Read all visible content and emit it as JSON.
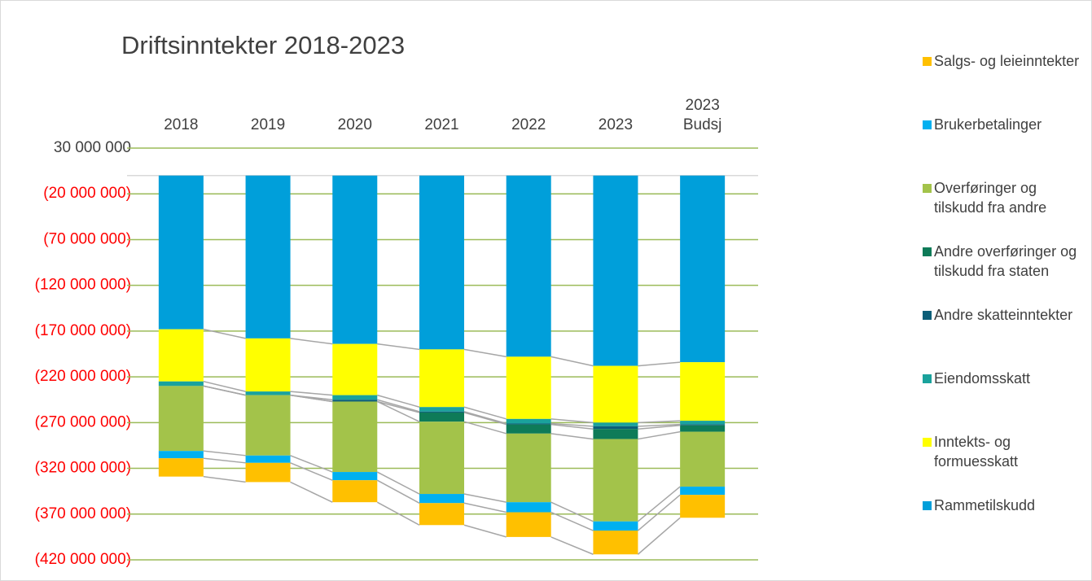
{
  "chart_data": {
    "type": "stacked_bar",
    "title": "Driftsinntekter 2018-2023",
    "categories": [
      "2018",
      "2019",
      "2020",
      "2021",
      "2022",
      "2023",
      "2023 Budsj"
    ],
    "series": [
      {
        "name": "Rammetilskudd",
        "color": "#009fda",
        "values": [
          -168000000,
          -178000000,
          -184000000,
          -190000000,
          -198000000,
          -208000000,
          -204000000
        ]
      },
      {
        "name": "Inntekts- og formuesskatt",
        "color": "#ffff00",
        "values": [
          -57000000,
          -58000000,
          -56000000,
          -63000000,
          -68000000,
          -62000000,
          -64000000
        ]
      },
      {
        "name": "Eiendomsskatt",
        "color": "#1aa29c",
        "values": [
          -5000000,
          -4000000,
          -5000000,
          -5000000,
          -5000000,
          -4000000,
          -4000000
        ]
      },
      {
        "name": "Andre skatteinntekter",
        "color": "#0b5e78",
        "values": [
          0,
          0,
          -2000000,
          -1000000,
          -1000000,
          -3000000,
          -1000000
        ]
      },
      {
        "name": "Andre overføringer og tilskudd fra staten",
        "color": "#0e7b58",
        "values": [
          0,
          0,
          0,
          -10000000,
          -10000000,
          -11000000,
          -7000000
        ]
      },
      {
        "name": "Overføringer og tilskudd fra andre",
        "color": "#a3c34a",
        "values": [
          -71000000,
          -66000000,
          -77000000,
          -79000000,
          -75000000,
          -90000000,
          -60000000
        ]
      },
      {
        "name": "Brukerbetalinger",
        "color": "#00b0f0",
        "values": [
          -8000000,
          -8000000,
          -9000000,
          -10000000,
          -11000000,
          -10000000,
          -9000000
        ]
      },
      {
        "name": "Salgs- og leieinntekter",
        "color": "#ffc000",
        "values": [
          -20000000,
          -21000000,
          -24000000,
          -24000000,
          -27000000,
          -26000000,
          -25000000
        ]
      }
    ],
    "ylim": [
      30000000,
      -420000000
    ],
    "yticks": [
      {
        "value": 30000000,
        "label": "30 000 000"
      },
      {
        "value": -20000000,
        "label": "(20 000 000)"
      },
      {
        "value": -70000000,
        "label": "(70 000 000)"
      },
      {
        "value": -120000000,
        "label": "(120 000 000)"
      },
      {
        "value": -170000000,
        "label": "(170 000 000)"
      },
      {
        "value": -220000000,
        "label": "(220 000 000)"
      },
      {
        "value": -270000000,
        "label": "(270 000 000)"
      },
      {
        "value": -320000000,
        "label": "(320 000 000)"
      },
      {
        "value": -370000000,
        "label": "(370 000 000)"
      },
      {
        "value": -420000000,
        "label": "(420 000 000)"
      }
    ],
    "negative_tick_color": "#ff0000",
    "grid": true,
    "grid_color": "#9bbb59",
    "legend": "right",
    "legend_order": "reversed"
  }
}
